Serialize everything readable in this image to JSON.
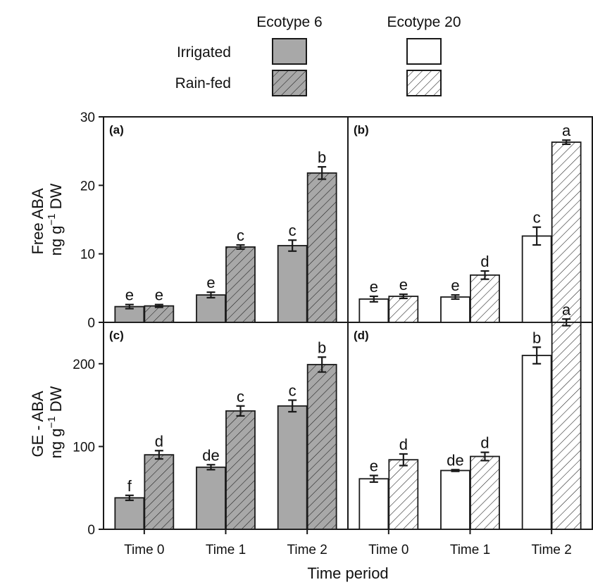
{
  "chart_data": {
    "type": "bar",
    "layout": "2x2 panels, shared x-axis",
    "xlabel": "Time period",
    "categories": [
      "Time 0",
      "Time 1",
      "Time 2"
    ],
    "legend": {
      "columns": [
        "Ecotype 6",
        "Ecotype 20"
      ],
      "rows": [
        "Irrigated",
        "Rain-fed"
      ],
      "placement": "top"
    },
    "colors": {
      "ecotype6_fill": "#a8a8a8",
      "ecotype20_fill": "#ffffff",
      "outline": "#1a1a1a"
    },
    "rows": [
      {
        "ylabel_line1": "Free ABA",
        "ylabel_line2": "ng g",
        "ylabel_sup": "−1",
        "ylabel_line2_tail": " DW",
        "ylim": [
          0,
          30
        ],
        "yticks": [
          0,
          10,
          20,
          30
        ]
      },
      {
        "ylabel_line1": "GE - ABA",
        "ylabel_line2": "ng g",
        "ylabel_sup": "−1",
        "ylabel_line2_tail": " DW",
        "ylim": [
          0,
          250
        ],
        "yticks": [
          0,
          100,
          200
        ]
      }
    ],
    "panels": [
      {
        "label": "(a)",
        "row": 0,
        "col": 0,
        "ecotype": "Ecotype 6",
        "series": [
          {
            "name": "Irrigated",
            "values": [
              2.3,
              4.0,
              11.2
            ],
            "errors": [
              0.3,
              0.4,
              0.8
            ],
            "letters": [
              "e",
              "e",
              "c"
            ]
          },
          {
            "name": "Rain-fed",
            "values": [
              2.4,
              11.0,
              21.8
            ],
            "errors": [
              0.2,
              0.3,
              0.9
            ],
            "letters": [
              "e",
              "c",
              "b"
            ]
          }
        ]
      },
      {
        "label": "(b)",
        "row": 0,
        "col": 1,
        "ecotype": "Ecotype 20",
        "series": [
          {
            "name": "Irrigated",
            "values": [
              3.4,
              3.7,
              12.6
            ],
            "errors": [
              0.4,
              0.3,
              1.3
            ],
            "letters": [
              "e",
              "e",
              "c"
            ]
          },
          {
            "name": "Rain-fed",
            "values": [
              3.8,
              6.9,
              26.3
            ],
            "errors": [
              0.3,
              0.6,
              0.3
            ],
            "letters": [
              "e",
              "d",
              "a"
            ]
          }
        ]
      },
      {
        "label": "(c)",
        "row": 1,
        "col": 0,
        "ecotype": "Ecotype 6",
        "series": [
          {
            "name": "Irrigated",
            "values": [
              38,
              75,
              149
            ],
            "errors": [
              3,
              3,
              7
            ],
            "letters": [
              "f",
              "de",
              "c"
            ]
          },
          {
            "name": "Rain-fed",
            "values": [
              90,
              143,
              199
            ],
            "errors": [
              5,
              6,
              9
            ],
            "letters": [
              "d",
              "c",
              "b"
            ]
          }
        ]
      },
      {
        "label": "(d)",
        "row": 1,
        "col": 1,
        "ecotype": "Ecotype 20",
        "series": [
          {
            "name": "Irrigated",
            "values": [
              61,
              71,
              210
            ],
            "errors": [
              4,
              1,
              10
            ],
            "letters": [
              "e",
              "de",
              "b"
            ]
          },
          {
            "name": "Rain-fed",
            "values": [
              84,
              88,
              250
            ],
            "errors": [
              7,
              5,
              4
            ],
            "letters": [
              "d",
              "d",
              "a"
            ]
          }
        ]
      }
    ]
  }
}
